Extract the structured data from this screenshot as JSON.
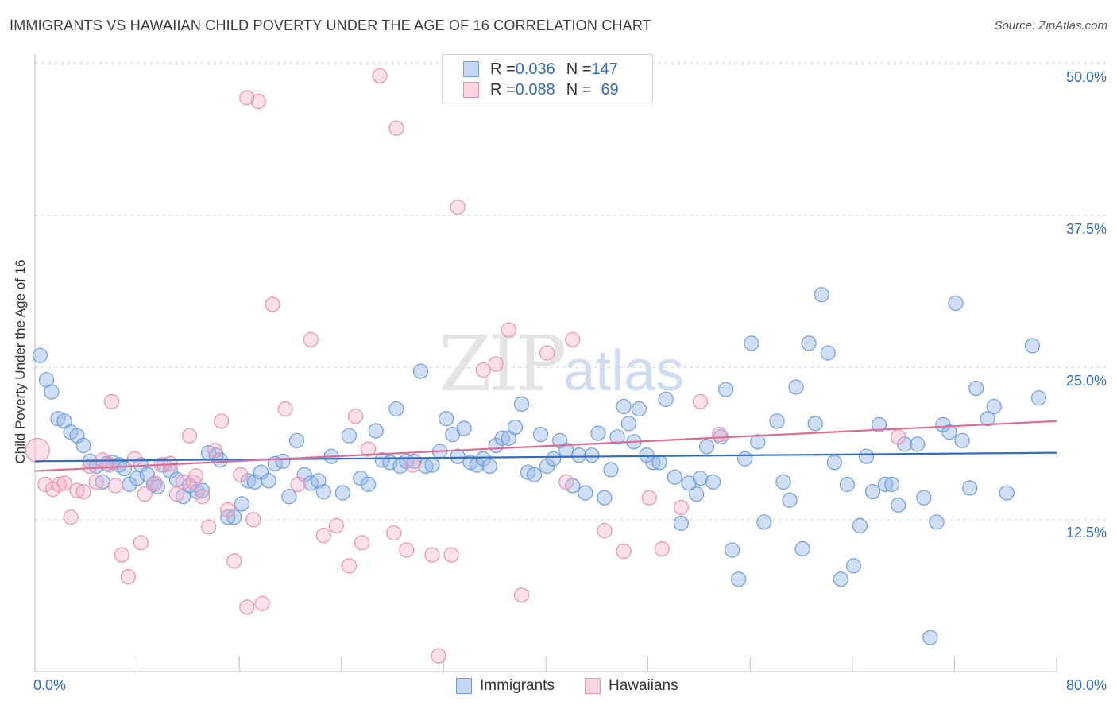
{
  "title": "IMMIGRANTS VS HAWAIIAN CHILD POVERTY UNDER THE AGE OF 16 CORRELATION CHART",
  "source": "Source: ZipAtlas.com",
  "watermark": {
    "zip": "ZIP",
    "atlas": "atlas"
  },
  "legend": {
    "rows": [
      {
        "r_label": "R = ",
        "r_value": "0.036",
        "n_label": "N = ",
        "n_value": "147",
        "color": "#7fa8e0"
      },
      {
        "r_label": "R = ",
        "r_value": "0.088",
        "n_label": "N = ",
        "n_value": "69",
        "color": "#ef9db5"
      }
    ]
  },
  "bottom_legend": [
    "Immigrants",
    "Hawaiians"
  ],
  "colors": {
    "immigrants_fill": "rgba(150,185,235,0.45)",
    "immigrants_stroke": "#6f9fdc",
    "immigrants_line": "#2f6ec4",
    "hawaiians_fill": "rgba(245,170,195,0.35)",
    "hawaiians_stroke": "#eb93af",
    "hawaiians_line": "#e06b93",
    "axis_text": "#2f6ec4"
  },
  "chart_data": {
    "type": "scatter",
    "title": "IMMIGRANTS VS HAWAIIAN CHILD POVERTY UNDER THE AGE OF 16 CORRELATION CHART",
    "xlabel": "",
    "ylabel": "Child Poverty Under the Age of 16",
    "xlim": [
      0,
      80
    ],
    "ylim": [
      0,
      50
    ],
    "x_tick_labels": [
      "0.0%",
      "80.0%"
    ],
    "y_tick_labels": [
      "12.5%",
      "25.0%",
      "37.5%",
      "50.0%"
    ],
    "y_ticks": [
      12.5,
      25.0,
      37.5,
      50.0
    ],
    "grid": "horizontal dashed",
    "legend_position": "top-center",
    "series": [
      {
        "name": "Immigrants",
        "trend": {
          "x0": 0,
          "y0": 17.3,
          "x1": 80,
          "y1": 18.0
        },
        "points": [
          [
            0.4,
            26.0
          ],
          [
            0.9,
            24.0
          ],
          [
            1.3,
            23.0
          ],
          [
            1.8,
            20.8
          ],
          [
            2.3,
            20.6
          ],
          [
            2.8,
            19.7
          ],
          [
            3.3,
            19.4
          ],
          [
            3.8,
            18.6
          ],
          [
            4.3,
            17.3
          ],
          [
            4.8,
            16.9
          ],
          [
            5.3,
            15.6
          ],
          [
            5.6,
            17.1
          ],
          [
            6.1,
            17.2
          ],
          [
            6.6,
            17.0
          ],
          [
            7.0,
            16.7
          ],
          [
            7.4,
            15.4
          ],
          [
            8.0,
            15.9
          ],
          [
            8.3,
            17.0
          ],
          [
            8.8,
            16.2
          ],
          [
            9.3,
            15.4
          ],
          [
            9.6,
            15.2
          ],
          [
            10.1,
            17.0
          ],
          [
            10.6,
            16.5
          ],
          [
            11.1,
            15.8
          ],
          [
            11.6,
            14.4
          ],
          [
            12.1,
            15.3
          ],
          [
            12.7,
            14.8
          ],
          [
            13.1,
            14.9
          ],
          [
            13.6,
            18.0
          ],
          [
            14.2,
            17.8
          ],
          [
            14.5,
            17.4
          ],
          [
            15.1,
            12.7
          ],
          [
            15.6,
            12.7
          ],
          [
            16.2,
            13.8
          ],
          [
            16.7,
            15.7
          ],
          [
            17.2,
            15.6
          ],
          [
            17.7,
            16.4
          ],
          [
            18.3,
            15.7
          ],
          [
            18.8,
            17.1
          ],
          [
            19.4,
            17.3
          ],
          [
            19.9,
            14.4
          ],
          [
            20.5,
            19.0
          ],
          [
            21.1,
            16.2
          ],
          [
            21.6,
            15.5
          ],
          [
            22.2,
            15.7
          ],
          [
            22.6,
            14.8
          ],
          [
            23.2,
            17.7
          ],
          [
            24.1,
            14.7
          ],
          [
            24.6,
            19.4
          ],
          [
            25.5,
            15.9
          ],
          [
            26.1,
            15.4
          ],
          [
            26.7,
            19.8
          ],
          [
            27.2,
            17.4
          ],
          [
            27.8,
            17.2
          ],
          [
            28.3,
            21.6
          ],
          [
            28.6,
            16.9
          ],
          [
            29.1,
            17.3
          ],
          [
            29.7,
            17.3
          ],
          [
            30.2,
            24.7
          ],
          [
            30.6,
            16.9
          ],
          [
            31.1,
            17.0
          ],
          [
            31.7,
            18.1
          ],
          [
            32.2,
            20.8
          ],
          [
            32.7,
            19.5
          ],
          [
            33.1,
            17.7
          ],
          [
            33.6,
            20.0
          ],
          [
            34.1,
            17.2
          ],
          [
            34.6,
            17.0
          ],
          [
            35.1,
            17.5
          ],
          [
            35.6,
            16.9
          ],
          [
            36.1,
            18.6
          ],
          [
            36.6,
            19.2
          ],
          [
            37.1,
            19.2
          ],
          [
            37.6,
            20.1
          ],
          [
            38.1,
            22.0
          ],
          [
            38.6,
            16.4
          ],
          [
            39.1,
            16.2
          ],
          [
            39.6,
            19.5
          ],
          [
            40.1,
            16.9
          ],
          [
            40.6,
            17.5
          ],
          [
            41.1,
            19.0
          ],
          [
            41.6,
            18.2
          ],
          [
            42.1,
            15.3
          ],
          [
            42.6,
            17.8
          ],
          [
            43.1,
            14.7
          ],
          [
            43.6,
            17.8
          ],
          [
            44.1,
            19.6
          ],
          [
            44.6,
            14.3
          ],
          [
            45.1,
            16.6
          ],
          [
            45.6,
            19.3
          ],
          [
            46.1,
            21.8
          ],
          [
            46.5,
            20.4
          ],
          [
            46.9,
            18.9
          ],
          [
            47.3,
            21.6
          ],
          [
            47.9,
            17.8
          ],
          [
            48.4,
            17.2
          ],
          [
            48.9,
            17.2
          ],
          [
            49.4,
            22.4
          ],
          [
            50.1,
            16.0
          ],
          [
            50.6,
            12.2
          ],
          [
            51.2,
            15.5
          ],
          [
            51.8,
            14.6
          ],
          [
            52.1,
            15.9
          ],
          [
            52.6,
            18.5
          ],
          [
            53.1,
            15.6
          ],
          [
            53.7,
            19.3
          ],
          [
            54.1,
            23.2
          ],
          [
            54.6,
            10.0
          ],
          [
            55.1,
            7.6
          ],
          [
            55.6,
            17.5
          ],
          [
            56.1,
            27.0
          ],
          [
            56.6,
            18.9
          ],
          [
            57.1,
            12.3
          ],
          [
            58.1,
            20.6
          ],
          [
            58.6,
            15.6
          ],
          [
            59.1,
            14.1
          ],
          [
            59.6,
            23.4
          ],
          [
            60.1,
            10.1
          ],
          [
            60.6,
            27.0
          ],
          [
            61.1,
            20.4
          ],
          [
            61.6,
            31.0
          ],
          [
            62.1,
            26.2
          ],
          [
            62.6,
            17.2
          ],
          [
            63.1,
            7.6
          ],
          [
            63.6,
            15.4
          ],
          [
            64.1,
            8.7
          ],
          [
            64.6,
            12.0
          ],
          [
            65.1,
            17.7
          ],
          [
            65.6,
            14.8
          ],
          [
            66.1,
            20.3
          ],
          [
            66.6,
            15.4
          ],
          [
            67.1,
            15.4
          ],
          [
            67.6,
            13.7
          ],
          [
            68.1,
            18.7
          ],
          [
            69.1,
            18.7
          ],
          [
            69.6,
            14.3
          ],
          [
            70.1,
            2.8
          ],
          [
            70.6,
            12.3
          ],
          [
            71.1,
            20.3
          ],
          [
            71.6,
            19.7
          ],
          [
            72.1,
            30.3
          ],
          [
            72.6,
            19.0
          ],
          [
            73.2,
            15.1
          ],
          [
            73.7,
            23.3
          ],
          [
            74.6,
            20.8
          ],
          [
            75.1,
            21.8
          ],
          [
            76.1,
            14.7
          ],
          [
            78.1,
            26.8
          ],
          [
            78.6,
            22.5
          ]
        ]
      },
      {
        "name": "Hawaiians",
        "trend": {
          "x0": 0,
          "y0": 16.5,
          "x1": 80,
          "y1": 20.6
        },
        "points": [
          [
            0.2,
            18.2
          ],
          [
            0.8,
            15.4
          ],
          [
            1.4,
            15.0
          ],
          [
            1.9,
            15.4
          ],
          [
            2.3,
            15.5
          ],
          [
            2.8,
            12.7
          ],
          [
            3.3,
            14.9
          ],
          [
            3.8,
            14.8
          ],
          [
            4.3,
            16.9
          ],
          [
            4.8,
            15.6
          ],
          [
            5.3,
            17.4
          ],
          [
            5.8,
            17.0
          ],
          [
            6.0,
            22.2
          ],
          [
            6.3,
            15.3
          ],
          [
            6.8,
            9.6
          ],
          [
            7.3,
            7.8
          ],
          [
            7.8,
            17.5
          ],
          [
            8.3,
            10.6
          ],
          [
            8.6,
            14.6
          ],
          [
            9.4,
            15.5
          ],
          [
            9.9,
            17.0
          ],
          [
            10.6,
            17.1
          ],
          [
            11.1,
            14.6
          ],
          [
            11.6,
            15.6
          ],
          [
            12.1,
            19.4
          ],
          [
            12.4,
            15.6
          ],
          [
            12.6,
            16.1
          ],
          [
            13.1,
            14.4
          ],
          [
            13.6,
            11.9
          ],
          [
            14.1,
            18.2
          ],
          [
            14.6,
            20.6
          ],
          [
            15.1,
            13.3
          ],
          [
            15.6,
            9.1
          ],
          [
            16.1,
            16.2
          ],
          [
            16.6,
            5.3
          ],
          [
            17.1,
            12.5
          ],
          [
            17.8,
            5.6
          ],
          [
            18.6,
            30.2
          ],
          [
            19.6,
            21.6
          ],
          [
            20.6,
            15.4
          ],
          [
            21.6,
            27.3
          ],
          [
            22.6,
            11.2
          ],
          [
            23.6,
            12.0
          ],
          [
            24.6,
            8.7
          ],
          [
            25.1,
            21.0
          ],
          [
            25.6,
            10.6
          ],
          [
            26.1,
            18.3
          ],
          [
            28.1,
            11.4
          ],
          [
            29.1,
            10.0
          ],
          [
            29.6,
            17.0
          ],
          [
            31.1,
            9.6
          ],
          [
            31.6,
            1.3
          ],
          [
            32.6,
            9.6
          ],
          [
            33.1,
            38.2
          ],
          [
            35.1,
            24.8
          ],
          [
            36.1,
            25.3
          ],
          [
            37.1,
            28.1
          ],
          [
            38.1,
            6.3
          ],
          [
            40.1,
            26.2
          ],
          [
            41.6,
            15.6
          ],
          [
            42.1,
            27.3
          ],
          [
            44.6,
            11.6
          ],
          [
            46.1,
            9.9
          ],
          [
            48.1,
            14.3
          ],
          [
            49.1,
            10.1
          ],
          [
            50.6,
            13.5
          ],
          [
            52.1,
            22.2
          ],
          [
            53.6,
            19.5
          ],
          [
            67.6,
            19.3
          ]
        ]
      }
    ],
    "extra_labels_note": "",
    "high_points": [
      {
        "series": "Hawaiians",
        "points": [
          [
            16.6,
            47.2
          ],
          [
            17.5,
            46.9
          ],
          [
            27.0,
            49.0
          ],
          [
            28.3,
            44.7
          ]
        ]
      }
    ]
  }
}
